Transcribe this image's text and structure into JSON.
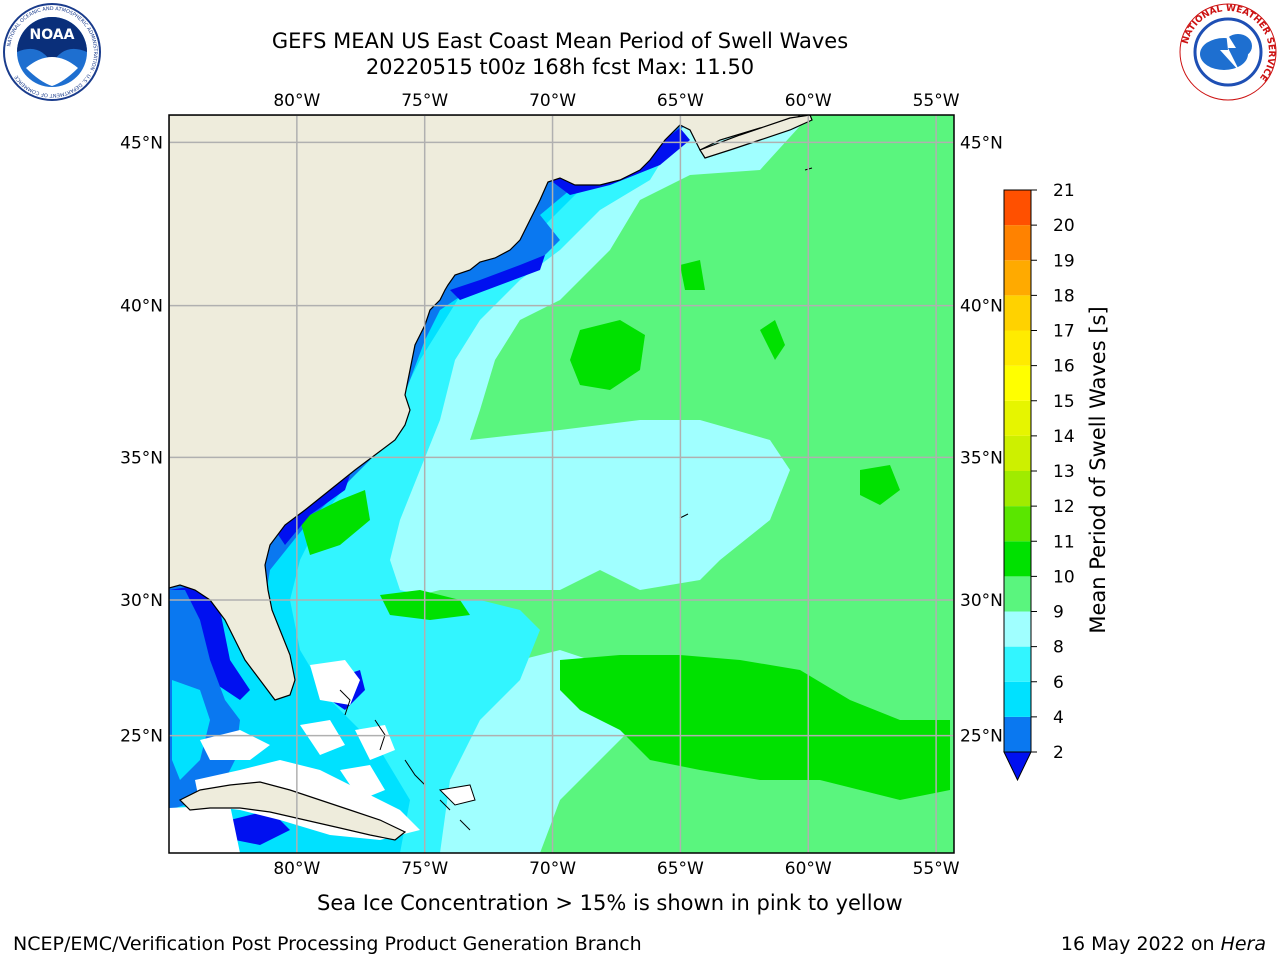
{
  "header": {
    "title_line1": "GEFS MEAN US East Coast Mean Period of Swell Waves",
    "title_line2": "20220515 t00z 168h fcst   Max: 11.50"
  },
  "logos": {
    "left": {
      "text": "NOAA",
      "ring_text": "NATIONAL OCEANIC AND ATMOSPHERIC ADMINISTRATION · U.S. DEPARTMENT OF COMMERCE"
    },
    "right": {
      "ring_text": "NATIONAL WEATHER SERVICE"
    }
  },
  "map": {
    "lon_labels": [
      "80°W",
      "75°W",
      "70°W",
      "65°W",
      "60°W",
      "55°W"
    ],
    "lat_labels": [
      "45°N",
      "40°N",
      "35°N",
      "30°N",
      "25°N"
    ],
    "lon_values": [
      -80,
      -75,
      -70,
      -65,
      -60,
      -55
    ],
    "lat_values": [
      45,
      40,
      35,
      30,
      25
    ],
    "extent": {
      "lon_min": -85,
      "lon_max": -54.3,
      "lat_min": 20.5,
      "lat_max": 45.8
    },
    "colors": {
      "land": "#eeecdc",
      "grid": "#b0b0b0",
      "coast": "#000000"
    }
  },
  "colorbar": {
    "label": "Mean Period of Swell Waves [s]",
    "ticks": [
      "2",
      "4",
      "6",
      "8",
      "9",
      "10",
      "11",
      "12",
      "13",
      "14",
      "15",
      "16",
      "17",
      "18",
      "19",
      "20",
      "21"
    ],
    "colors": [
      "#0a78f0",
      "#00e1ff",
      "#32f5ff",
      "#a0ffff",
      "#5af57e",
      "#00e100",
      "#5ae600",
      "#a0eb00",
      "#cdf000",
      "#e6f500",
      "#ffff00",
      "#ffeb00",
      "#ffd200",
      "#ffaa00",
      "#ff8200",
      "#ff5000",
      "#ff2d00",
      "#ff0000"
    ],
    "extend_color": "#0010f0"
  },
  "footer": {
    "subtitle": "Sea Ice Concentration > 15% is shown in pink to yellow",
    "left": "NCEP/EMC/Verification Post Processing Product Generation Branch",
    "right_date": "16 May 2022 on ",
    "right_host": "Hera"
  }
}
